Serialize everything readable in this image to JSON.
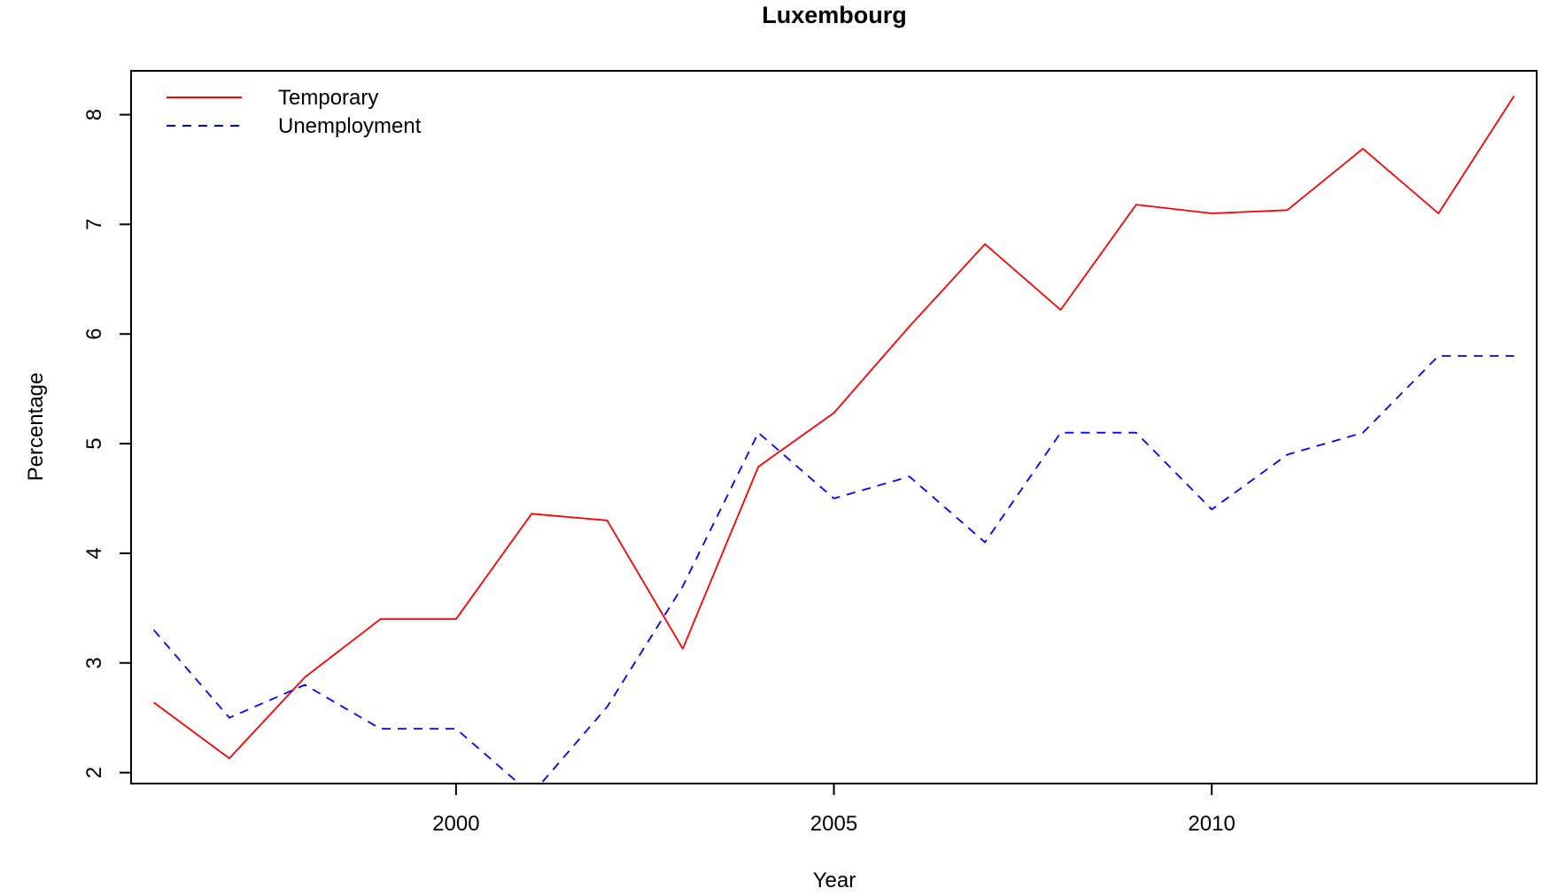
{
  "chart_data": {
    "type": "line",
    "title": "Luxembourg",
    "xlabel": "Year",
    "ylabel": "Percentage",
    "xlim": [
      1995.7,
      2014.3
    ],
    "ylim": [
      1.9,
      8.4
    ],
    "x_ticks": [
      2000,
      2005,
      2010
    ],
    "y_ticks": [
      2,
      3,
      4,
      5,
      6,
      7,
      8
    ],
    "grid": false,
    "legend_position": "top-left",
    "x": [
      1996,
      1997,
      1998,
      1999,
      2000,
      2001,
      2002,
      2003,
      2004,
      2005,
      2006,
      2007,
      2008,
      2009,
      2010,
      2011,
      2012,
      2013,
      2014
    ],
    "series": [
      {
        "name": "Temporary",
        "color": "#ff0000",
        "dash": "solid",
        "values": [
          2.64,
          2.13,
          2.87,
          3.4,
          3.4,
          4.36,
          4.3,
          3.13,
          4.79,
          5.28,
          6.07,
          6.82,
          6.22,
          7.18,
          7.1,
          7.13,
          7.69,
          7.1,
          8.17
        ]
      },
      {
        "name": "Unemployment",
        "color": "#0000ff",
        "dash": "dashed",
        "values": [
          3.3,
          2.5,
          2.8,
          2.4,
          2.4,
          1.8,
          2.6,
          3.7,
          5.1,
          4.5,
          4.7,
          4.1,
          5.1,
          5.1,
          4.4,
          4.9,
          5.1,
          5.8,
          5.8
        ]
      }
    ]
  }
}
